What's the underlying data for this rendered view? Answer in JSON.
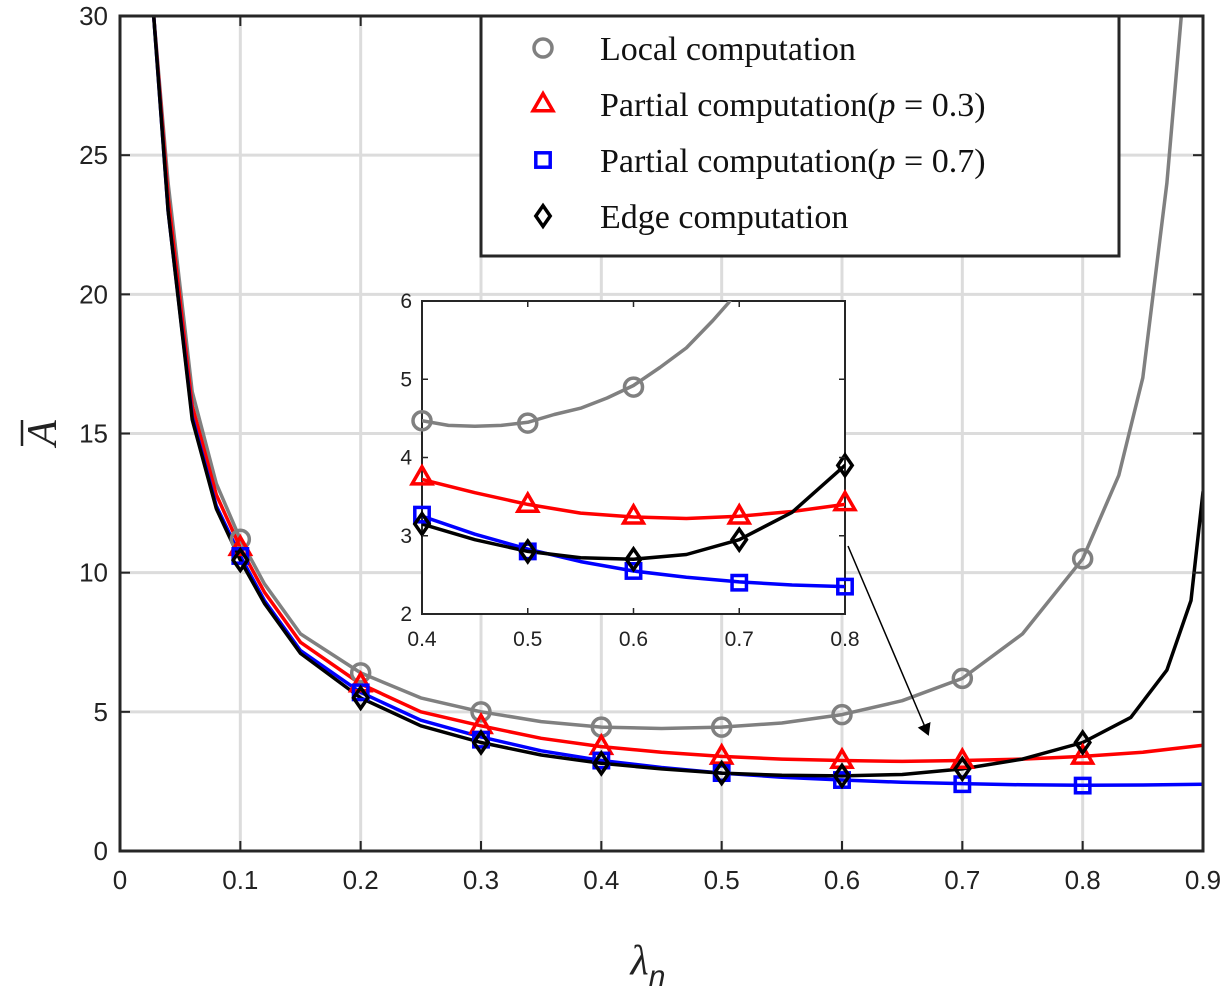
{
  "chart_data": [
    {
      "type": "line",
      "xlabel_symbol": "λ",
      "xlabel_sub": "n",
      "ylabel_symbol": "A",
      "ylabel_bar": true,
      "xlim": [
        0,
        0.9
      ],
      "ylim": [
        0,
        30
      ],
      "xticks": [
        "0",
        "0.1",
        "0.2",
        "0.3",
        "0.4",
        "0.5",
        "0.6",
        "0.7",
        "0.8",
        "0.9"
      ],
      "yticks": [
        "0",
        "5",
        "10",
        "15",
        "20",
        "25",
        "30"
      ],
      "grid": true,
      "legend_position": "top-right",
      "series": [
        {
          "name": "Local computation",
          "color": "#808080",
          "marker": "circle",
          "curve": [
            [
              0.028,
              30
            ],
            [
              0.04,
              24
            ],
            [
              0.06,
              16.5
            ],
            [
              0.08,
              13.2
            ],
            [
              0.1,
              11.2
            ],
            [
              0.12,
              9.6
            ],
            [
              0.15,
              7.8
            ],
            [
              0.2,
              6.4
            ],
            [
              0.25,
              5.5
            ],
            [
              0.3,
              5.0
            ],
            [
              0.35,
              4.65
            ],
            [
              0.4,
              4.45
            ],
            [
              0.45,
              4.4
            ],
            [
              0.5,
              4.45
            ],
            [
              0.55,
              4.6
            ],
            [
              0.6,
              4.9
            ],
            [
              0.65,
              5.4
            ],
            [
              0.7,
              6.2
            ],
            [
              0.75,
              7.8
            ],
            [
              0.8,
              10.5
            ],
            [
              0.83,
              13.5
            ],
            [
              0.85,
              17
            ],
            [
              0.87,
              24
            ],
            [
              0.882,
              30
            ]
          ],
          "points": [
            [
              0.1,
              11.2
            ],
            [
              0.2,
              6.4
            ],
            [
              0.3,
              5.0
            ],
            [
              0.4,
              4.45
            ],
            [
              0.5,
              4.45
            ],
            [
              0.6,
              4.9
            ],
            [
              0.7,
              6.2
            ],
            [
              0.8,
              10.5
            ]
          ]
        },
        {
          "name": "Partial computation(p = 0.3)",
          "name_prefix": "Partial computation(",
          "name_var": "p",
          "name_suffix": " = 0.3)",
          "color": "#ff0000",
          "marker": "triangle",
          "curve": [
            [
              0.028,
              30
            ],
            [
              0.04,
              23.5
            ],
            [
              0.06,
              16
            ],
            [
              0.08,
              12.8
            ],
            [
              0.1,
              10.9
            ],
            [
              0.12,
              9.3
            ],
            [
              0.15,
              7.5
            ],
            [
              0.2,
              6.0
            ],
            [
              0.25,
              5.0
            ],
            [
              0.3,
              4.5
            ],
            [
              0.35,
              4.05
            ],
            [
              0.4,
              3.75
            ],
            [
              0.45,
              3.55
            ],
            [
              0.5,
              3.4
            ],
            [
              0.55,
              3.3
            ],
            [
              0.6,
              3.25
            ],
            [
              0.65,
              3.22
            ],
            [
              0.7,
              3.25
            ],
            [
              0.75,
              3.3
            ],
            [
              0.8,
              3.4
            ],
            [
              0.85,
              3.55
            ],
            [
              0.9,
              3.8
            ]
          ],
          "points": [
            [
              0.1,
              10.9
            ],
            [
              0.2,
              6.0
            ],
            [
              0.3,
              4.5
            ],
            [
              0.4,
              3.75
            ],
            [
              0.5,
              3.4
            ],
            [
              0.6,
              3.25
            ],
            [
              0.7,
              3.25
            ],
            [
              0.8,
              3.4
            ]
          ]
        },
        {
          "name": "Partial computation(p = 0.7)",
          "name_prefix": "Partial computation(",
          "name_var": "p",
          "name_suffix": " = 0.7)",
          "color": "#0000ff",
          "marker": "square",
          "curve": [
            [
              0.028,
              30
            ],
            [
              0.04,
              23
            ],
            [
              0.06,
              15.6
            ],
            [
              0.08,
              12.4
            ],
            [
              0.1,
              10.6
            ],
            [
              0.12,
              9.0
            ],
            [
              0.15,
              7.2
            ],
            [
              0.2,
              5.7
            ],
            [
              0.25,
              4.7
            ],
            [
              0.3,
              4.1
            ],
            [
              0.35,
              3.6
            ],
            [
              0.4,
              3.25
            ],
            [
              0.45,
              3.0
            ],
            [
              0.5,
              2.8
            ],
            [
              0.55,
              2.65
            ],
            [
              0.6,
              2.55
            ],
            [
              0.65,
              2.47
            ],
            [
              0.7,
              2.42
            ],
            [
              0.75,
              2.38
            ],
            [
              0.8,
              2.36
            ],
            [
              0.85,
              2.37
            ],
            [
              0.9,
              2.4
            ]
          ],
          "points": [
            [
              0.1,
              10.6
            ],
            [
              0.2,
              5.7
            ],
            [
              0.3,
              4.0
            ],
            [
              0.4,
              3.25
            ],
            [
              0.5,
              2.8
            ],
            [
              0.6,
              2.55
            ],
            [
              0.7,
              2.4
            ],
            [
              0.8,
              2.35
            ]
          ]
        },
        {
          "name": "Edge computation",
          "color": "#000000",
          "marker": "diamond",
          "curve": [
            [
              0.028,
              30
            ],
            [
              0.04,
              23
            ],
            [
              0.06,
              15.5
            ],
            [
              0.08,
              12.3
            ],
            [
              0.1,
              10.45
            ],
            [
              0.12,
              8.9
            ],
            [
              0.15,
              7.1
            ],
            [
              0.2,
              5.5
            ],
            [
              0.25,
              4.5
            ],
            [
              0.3,
              3.9
            ],
            [
              0.35,
              3.45
            ],
            [
              0.4,
              3.15
            ],
            [
              0.45,
              2.95
            ],
            [
              0.5,
              2.8
            ],
            [
              0.55,
              2.72
            ],
            [
              0.6,
              2.7
            ],
            [
              0.65,
              2.75
            ],
            [
              0.7,
              2.95
            ],
            [
              0.75,
              3.3
            ],
            [
              0.8,
              3.9
            ],
            [
              0.84,
              4.8
            ],
            [
              0.87,
              6.5
            ],
            [
              0.89,
              9.0
            ],
            [
              0.9,
              12.9
            ]
          ],
          "points": [
            [
              0.1,
              10.45
            ],
            [
              0.2,
              5.5
            ],
            [
              0.3,
              3.9
            ],
            [
              0.4,
              3.15
            ],
            [
              0.5,
              2.8
            ],
            [
              0.6,
              2.7
            ],
            [
              0.7,
              2.95
            ],
            [
              0.8,
              3.9
            ]
          ]
        }
      ]
    },
    {
      "type": "line",
      "role": "inset",
      "xlim": [
        0.4,
        0.8
      ],
      "ylim": [
        2,
        6
      ],
      "xticks": [
        "0.4",
        "0.5",
        "0.6",
        "0.7",
        "0.8"
      ],
      "yticks": [
        "2",
        "3",
        "4",
        "5",
        "6"
      ],
      "grid": false,
      "series": [
        {
          "name": "Local computation",
          "color": "#808080",
          "marker": "circle",
          "curve": [
            [
              0.4,
              4.47
            ],
            [
              0.425,
              4.41
            ],
            [
              0.45,
              4.4
            ],
            [
              0.475,
              4.41
            ],
            [
              0.5,
              4.45
            ],
            [
              0.525,
              4.55
            ],
            [
              0.55,
              4.63
            ],
            [
              0.575,
              4.76
            ],
            [
              0.6,
              4.92
            ],
            [
              0.625,
              5.15
            ],
            [
              0.65,
              5.4
            ],
            [
              0.675,
              5.75
            ],
            [
              0.69,
              5.98
            ],
            [
              0.7,
              6.2
            ]
          ],
          "points": [
            [
              0.4,
              4.47
            ],
            [
              0.5,
              4.44
            ],
            [
              0.6,
              4.9
            ]
          ]
        },
        {
          "name": "Partial computation(p = 0.3)",
          "color": "#ff0000",
          "marker": "triangle",
          "curve": [
            [
              0.4,
              3.72
            ],
            [
              0.45,
              3.55
            ],
            [
              0.5,
              3.4
            ],
            [
              0.55,
              3.29
            ],
            [
              0.6,
              3.24
            ],
            [
              0.65,
              3.22
            ],
            [
              0.7,
              3.25
            ],
            [
              0.75,
              3.31
            ],
            [
              0.8,
              3.4
            ]
          ],
          "points": [
            [
              0.4,
              3.75
            ],
            [
              0.5,
              3.4
            ],
            [
              0.6,
              3.25
            ],
            [
              0.7,
              3.25
            ],
            [
              0.8,
              3.42
            ]
          ]
        },
        {
          "name": "Partial computation(p = 0.7)",
          "color": "#0000ff",
          "marker": "square",
          "curve": [
            [
              0.4,
              3.25
            ],
            [
              0.45,
              3.02
            ],
            [
              0.5,
              2.83
            ],
            [
              0.55,
              2.67
            ],
            [
              0.6,
              2.55
            ],
            [
              0.65,
              2.47
            ],
            [
              0.7,
              2.41
            ],
            [
              0.75,
              2.37
            ],
            [
              0.8,
              2.35
            ]
          ],
          "points": [
            [
              0.4,
              3.27
            ],
            [
              0.5,
              2.8
            ],
            [
              0.6,
              2.55
            ],
            [
              0.7,
              2.4
            ],
            [
              0.8,
              2.35
            ]
          ]
        },
        {
          "name": "Edge computation",
          "color": "#000000",
          "marker": "diamond",
          "curve": [
            [
              0.4,
              3.15
            ],
            [
              0.45,
              2.95
            ],
            [
              0.5,
              2.8
            ],
            [
              0.55,
              2.72
            ],
            [
              0.6,
              2.7
            ],
            [
              0.65,
              2.76
            ],
            [
              0.7,
              2.95
            ],
            [
              0.75,
              3.3
            ],
            [
              0.8,
              3.9
            ]
          ],
          "points": [
            [
              0.4,
              3.15
            ],
            [
              0.5,
              2.8
            ],
            [
              0.6,
              2.7
            ],
            [
              0.7,
              2.95
            ],
            [
              0.8,
              3.9
            ]
          ]
        }
      ]
    }
  ]
}
